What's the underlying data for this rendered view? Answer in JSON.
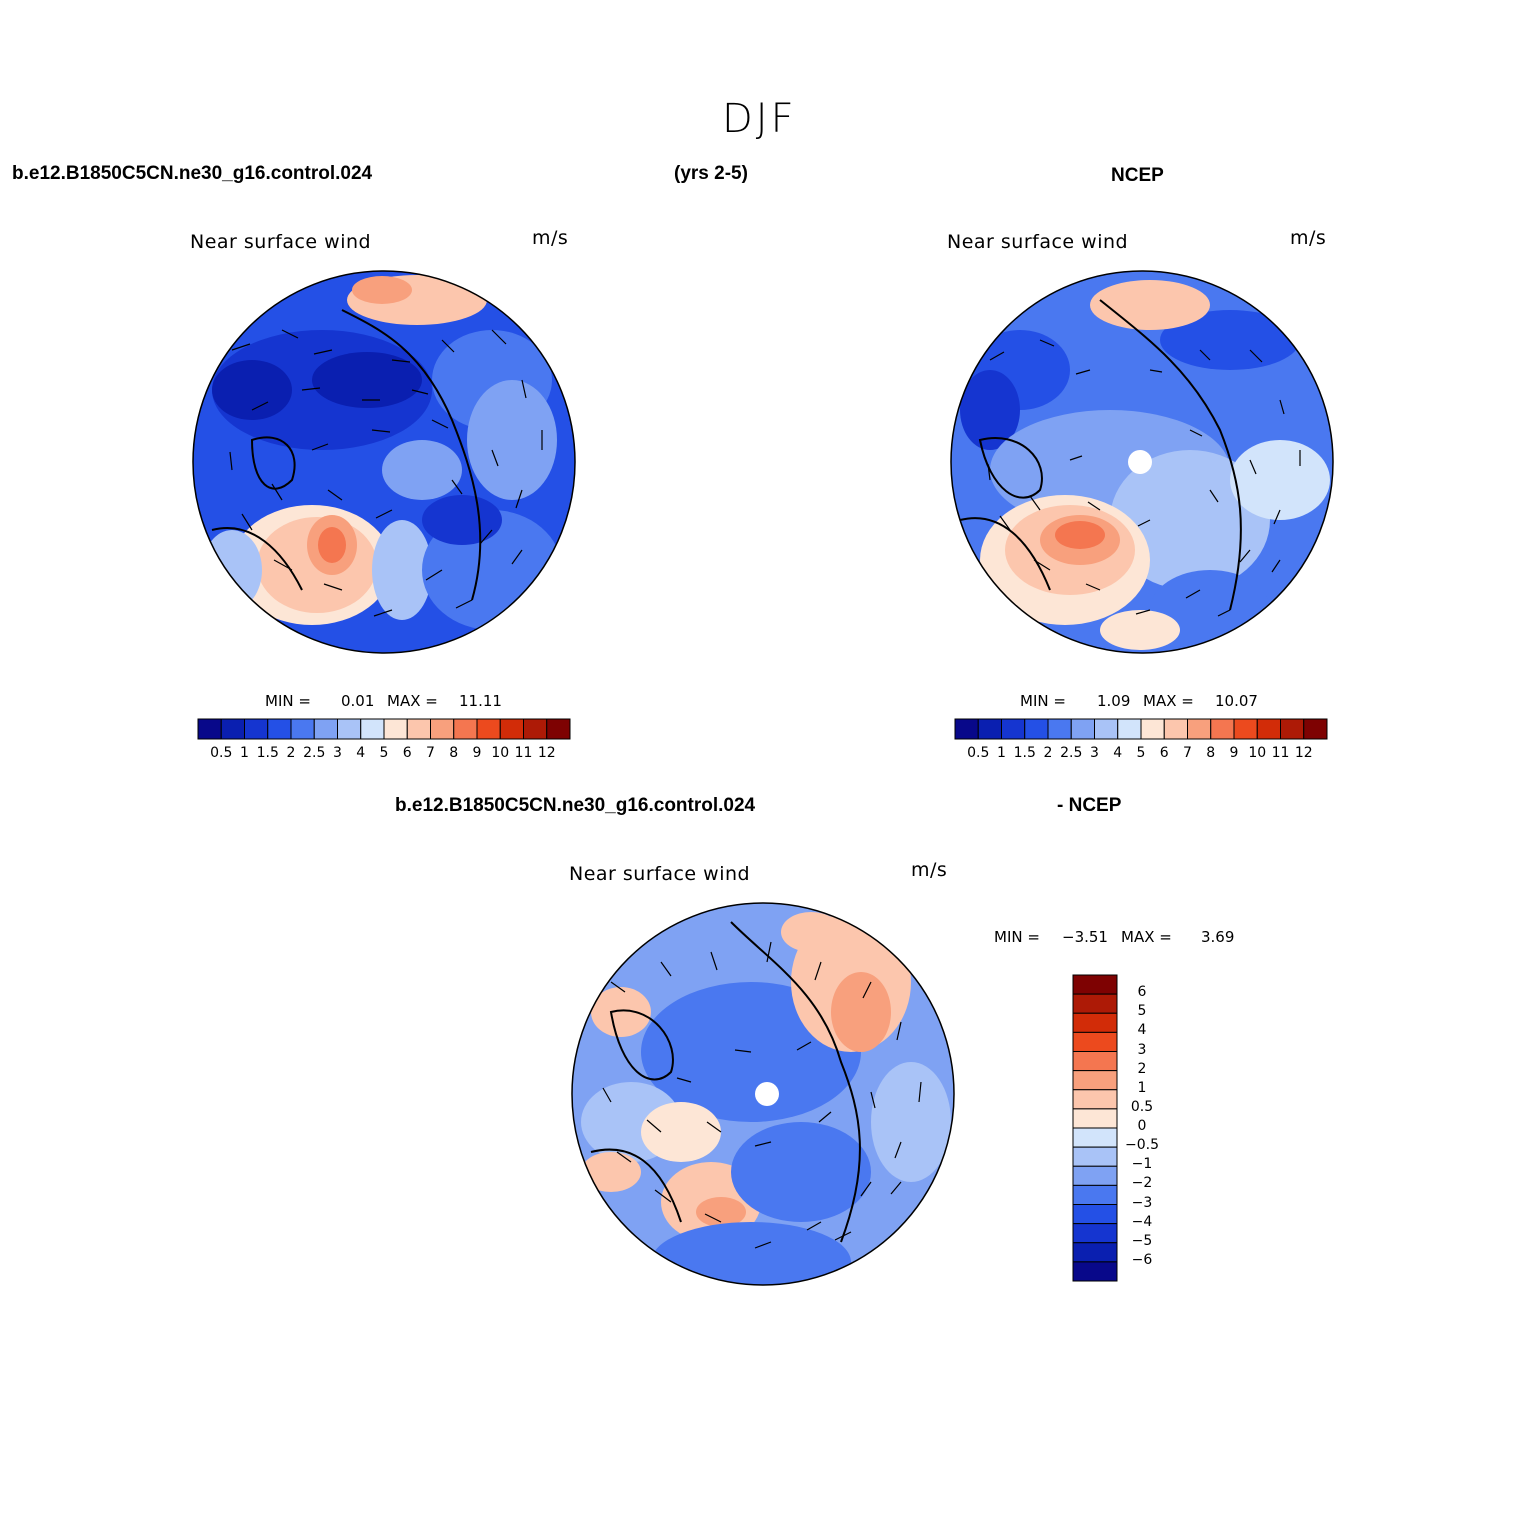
{
  "figure": {
    "season": "DJF",
    "header": {
      "case_name": "b.e12.B1850C5CN.ne30_g16.control.024",
      "years": "(yrs 2-5)",
      "obs_name": "NCEP"
    },
    "diff_header": {
      "case_name": "b.e12.B1850C5CN.ne30_g16.control.024",
      "obs_name": "- NCEP"
    }
  },
  "colors": {
    "main_scale": [
      "#08088a",
      "#0a1fb0",
      "#1535d0",
      "#2450e6",
      "#4a78f0",
      "#7fa2f3",
      "#a9c3f7",
      "#d2e4fb",
      "#fde6d6",
      "#fcc6ad",
      "#f8a07d",
      "#f47650",
      "#ec4a1e",
      "#d22c08",
      "#ad1a06",
      "#7e0202"
    ],
    "diff_scale": [
      "#08088a",
      "#0a1fb0",
      "#1535d0",
      "#2450e6",
      "#4a78f0",
      "#7fa2f3",
      "#a9c3f7",
      "#d2e4fb",
      "#fde6d6",
      "#fcc6ad",
      "#f8a07d",
      "#f47650",
      "#ec4a1e",
      "#d22c08",
      "#ad1a06",
      "#7e0202"
    ]
  },
  "panels": {
    "model": {
      "title": "Near surface wind",
      "units": "m/s",
      "min_label": "MIN =",
      "min_value": "0.01",
      "max_label": "MAX =",
      "max_value": "11.11"
    },
    "obs": {
      "title": "Near surface wind",
      "units": "m/s",
      "min_label": "MIN =",
      "min_value": "1.09",
      "max_label": "MAX =",
      "max_value": "10.07"
    },
    "diff": {
      "title": "Near surface wind",
      "units": "m/s",
      "min_label": "MIN =",
      "min_value": "−3.51",
      "max_label": "MAX =",
      "max_value": "3.69"
    }
  },
  "colorbar_main_labels": [
    "0.5",
    "1",
    "1.5",
    "2",
    "2.5",
    "3",
    "4",
    "5",
    "6",
    "7",
    "8",
    "9",
    "10",
    "11",
    "12"
  ],
  "colorbar_diff_labels": [
    "6",
    "5",
    "4",
    "3",
    "2",
    "1",
    "0.5",
    "0",
    "−0.5",
    "−1",
    "−2",
    "−3",
    "−4",
    "−5",
    "−6"
  ]
}
